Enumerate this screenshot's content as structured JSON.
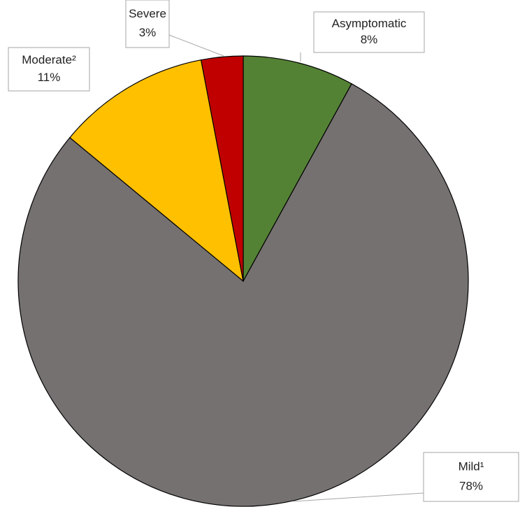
{
  "chart_data": {
    "type": "pie",
    "categories": [
      "Asymptomatic",
      "Mild¹",
      "Moderate²",
      "Severe"
    ],
    "values": [
      8,
      78,
      11,
      3
    ],
    "value_labels": [
      "8%",
      "78%",
      "11%",
      "3%"
    ],
    "colors": [
      "#548235",
      "#767171",
      "#ffc000",
      "#c00000"
    ]
  }
}
